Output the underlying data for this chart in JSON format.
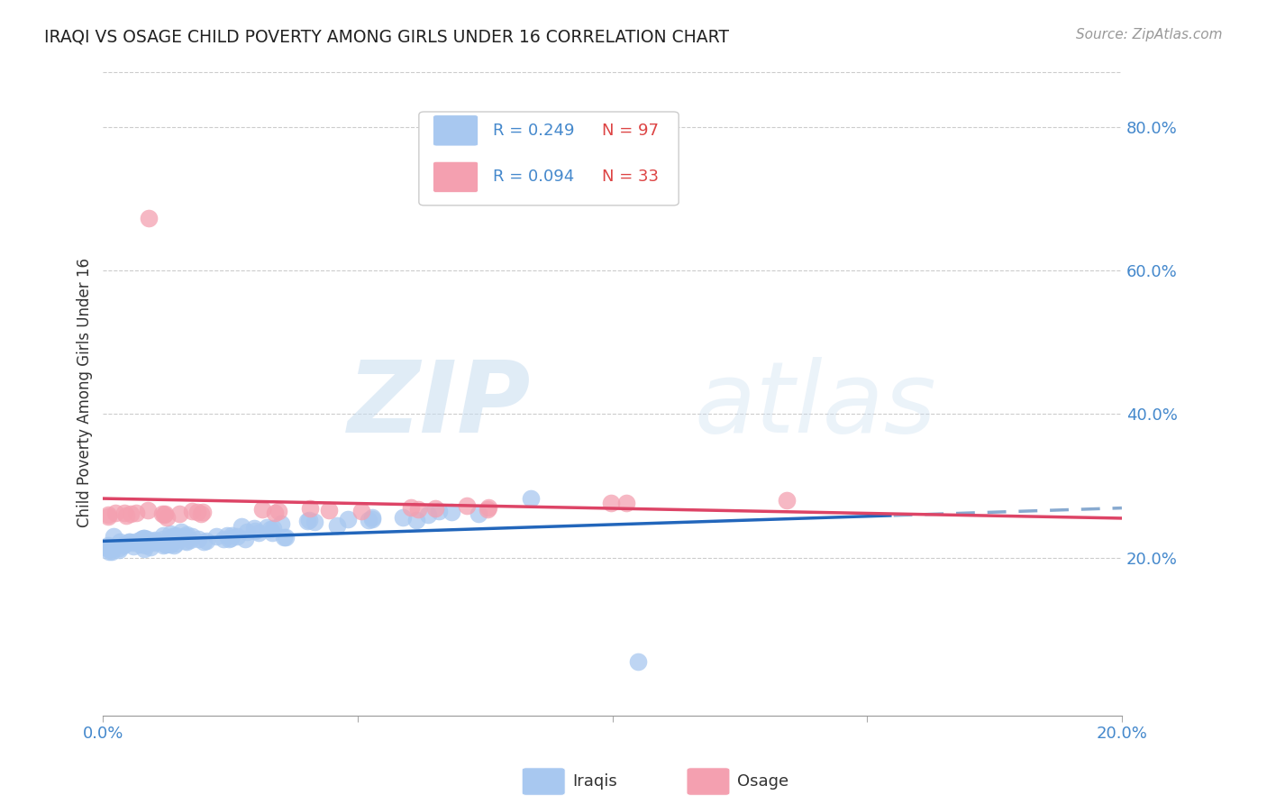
{
  "title": "IRAQI VS OSAGE CHILD POVERTY AMONG GIRLS UNDER 16 CORRELATION CHART",
  "source": "Source: ZipAtlas.com",
  "ylabel": "Child Poverty Among Girls Under 16",
  "x_min": 0.0,
  "x_max": 0.2,
  "y_min": -0.02,
  "y_max": 0.88,
  "iraqi_color": "#a8c8f0",
  "osage_color": "#f4a0b0",
  "iraqi_line_color": "#2266bb",
  "osage_line_color": "#dd4466",
  "iraqi_line_ext_color": "#88aad0",
  "background_color": "#ffffff",
  "grid_color": "#cccccc",
  "title_color": "#222222",
  "right_axis_color": "#4488cc",
  "legend_r_iraqi": "R = 0.249",
  "legend_n_iraqi": "N = 97",
  "legend_r_osage": "R = 0.094",
  "legend_n_osage": "N = 33",
  "watermark_zip": "ZIP",
  "watermark_atlas": "atlas",
  "iraqi_R": 0.249,
  "osage_R": 0.094,
  "seed": 12345
}
